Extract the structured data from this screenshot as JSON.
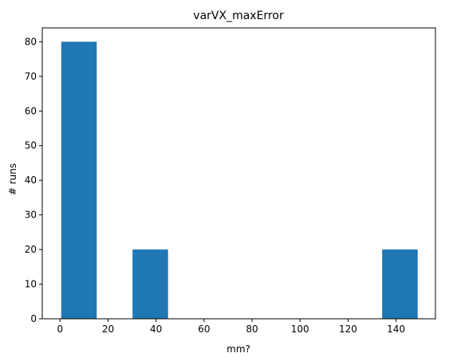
{
  "chart_data": {
    "type": "bar",
    "title": "varVX_maxError",
    "xlabel": "mm?",
    "ylabel": "# runs",
    "xlim": [
      -7.4,
      156.4
    ],
    "ylim": [
      0,
      84
    ],
    "xticks": [
      0,
      20,
      40,
      60,
      80,
      100,
      120,
      140
    ],
    "yticks": [
      0,
      10,
      20,
      30,
      40,
      50,
      60,
      70,
      80
    ],
    "grid": false,
    "color": "#1f77b4",
    "bins": [
      {
        "x0": 0.5,
        "x1": 15.3,
        "value": 80
      },
      {
        "x0": 15.3,
        "x1": 30.2,
        "value": 0
      },
      {
        "x0": 30.2,
        "x1": 45.0,
        "value": 20
      },
      {
        "x0": 45.0,
        "x1": 59.9,
        "value": 0
      },
      {
        "x0": 59.9,
        "x1": 74.8,
        "value": 0
      },
      {
        "x0": 74.8,
        "x1": 89.6,
        "value": 0
      },
      {
        "x0": 89.6,
        "x1": 104.5,
        "value": 0
      },
      {
        "x0": 104.5,
        "x1": 119.3,
        "value": 0
      },
      {
        "x0": 119.3,
        "x1": 134.2,
        "value": 0
      },
      {
        "x0": 134.2,
        "x1": 149.0,
        "value": 20
      }
    ]
  }
}
